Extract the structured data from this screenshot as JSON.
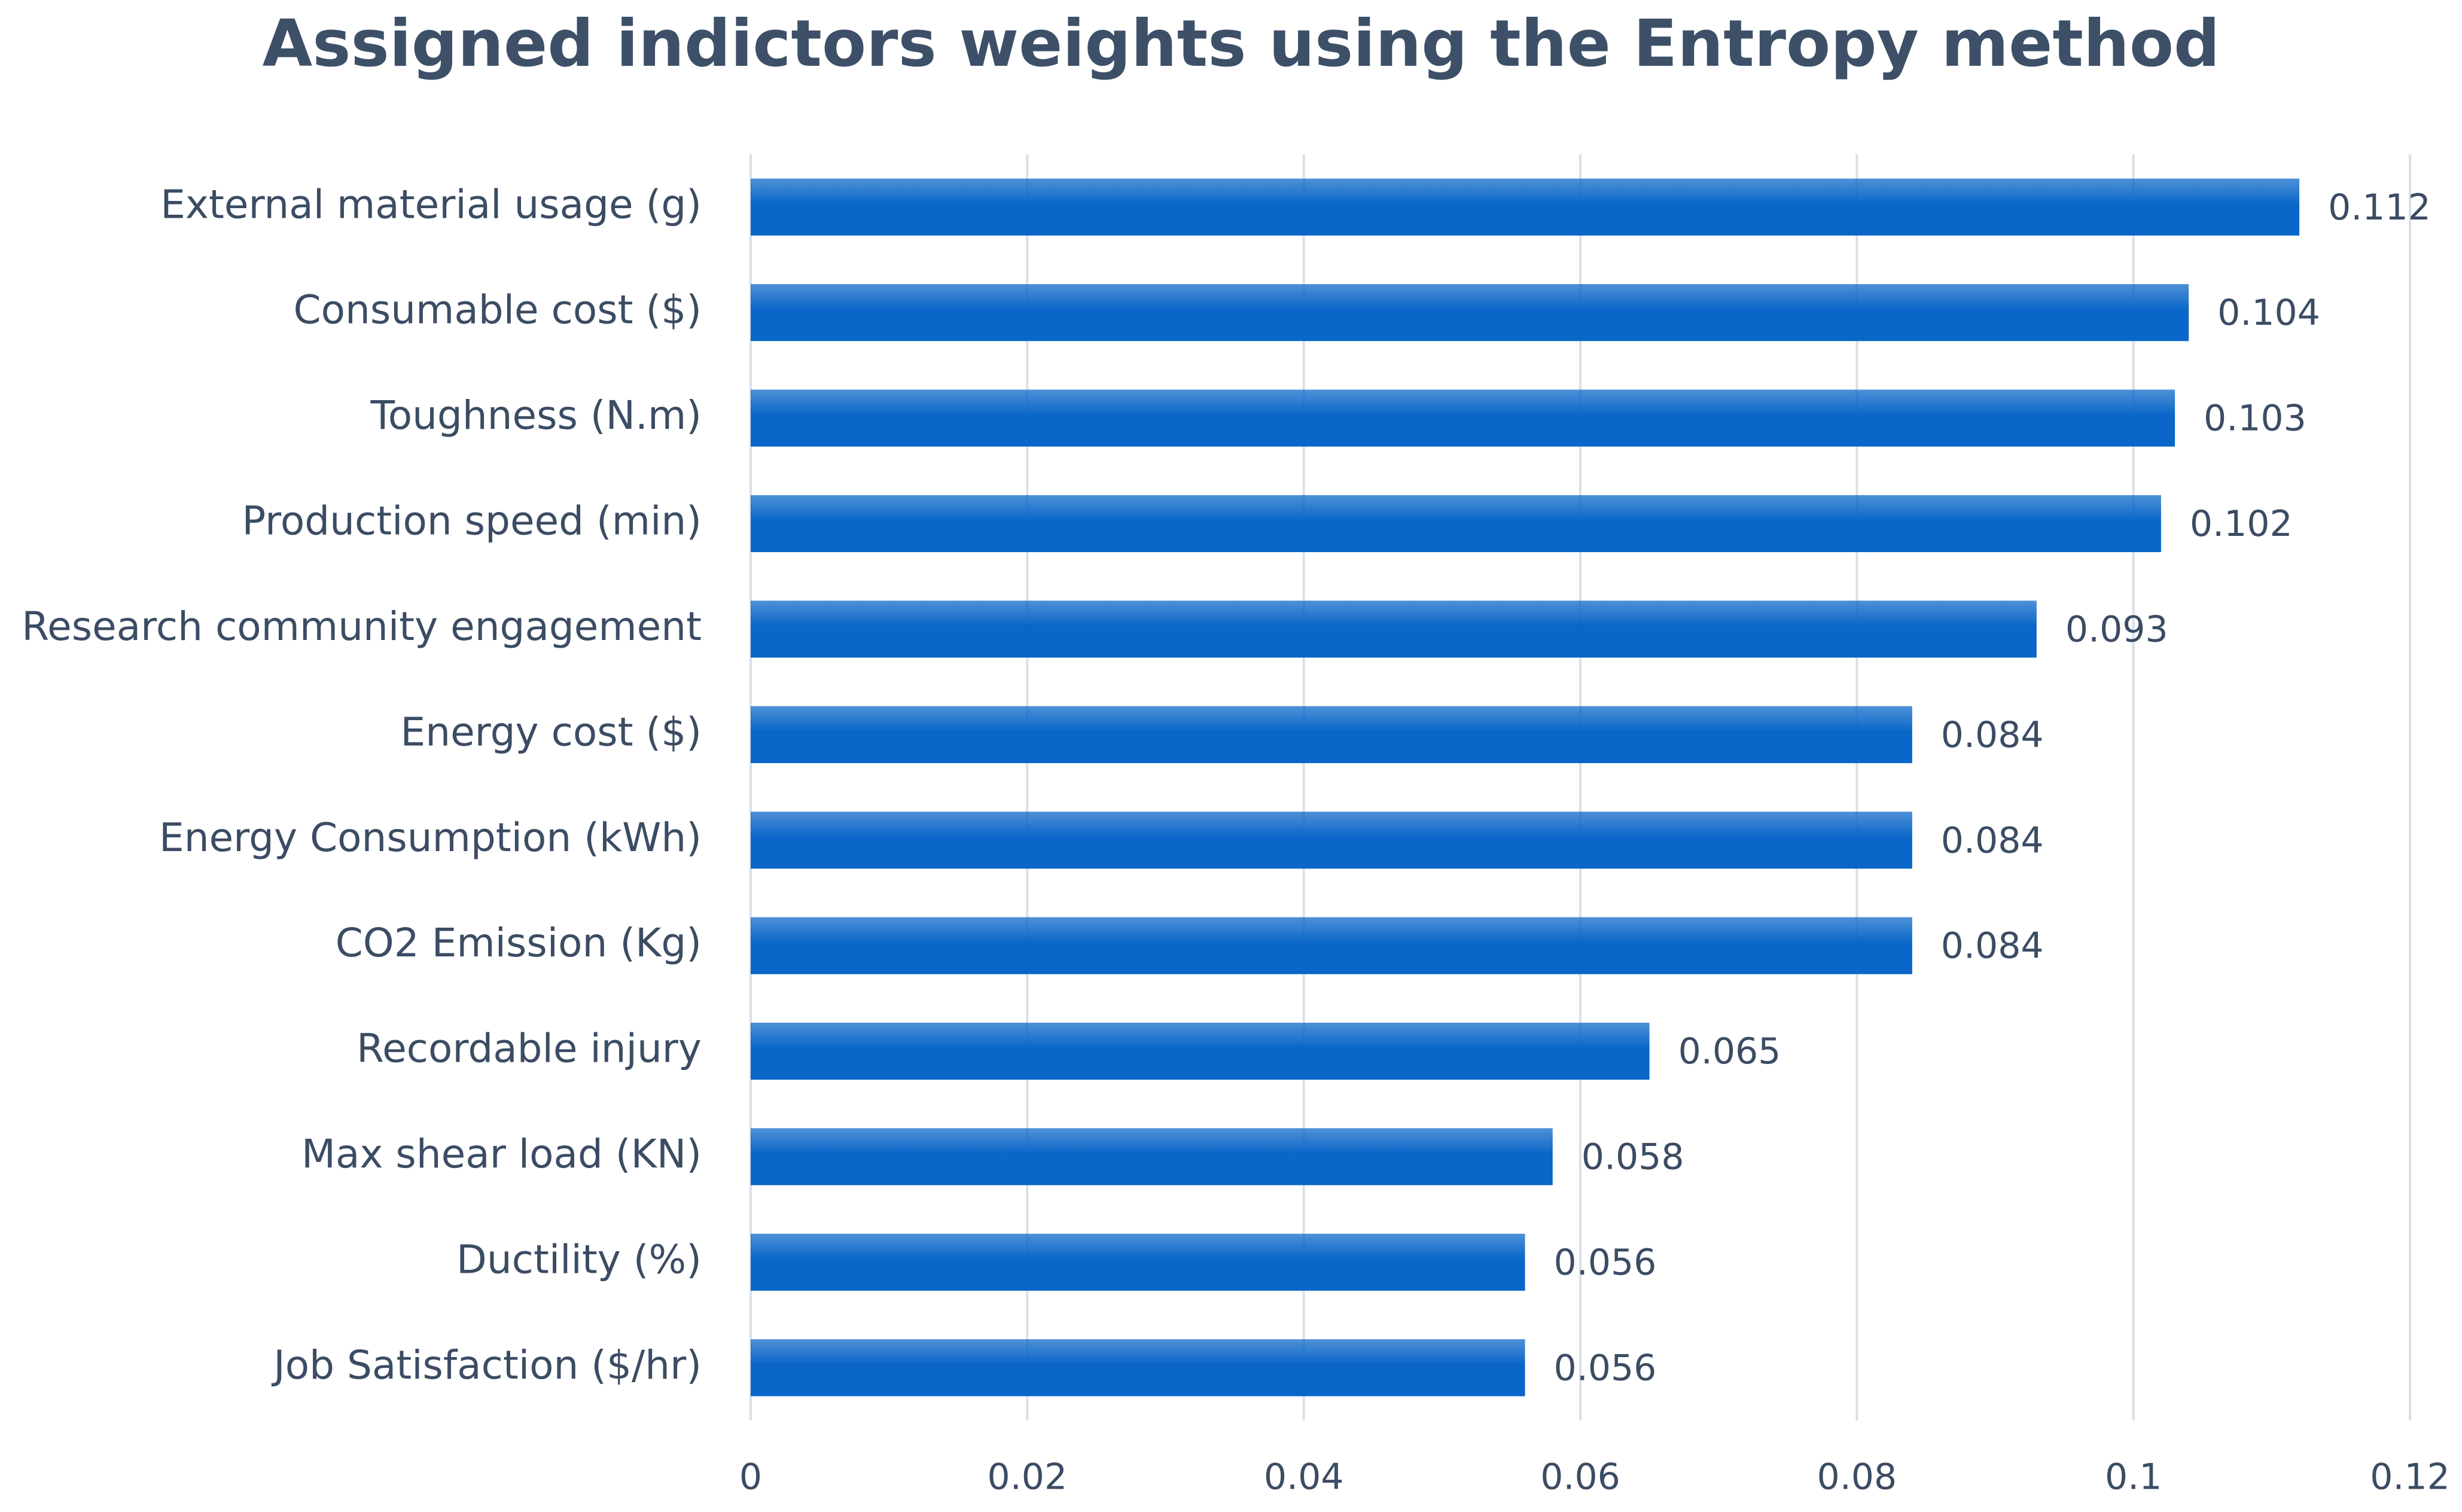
{
  "chart_data": {
    "type": "bar",
    "orientation": "horizontal",
    "title": "Assigned indictors weights using the Entropy method",
    "categories": [
      "External material usage (g)",
      "Consumable cost ($)",
      "Toughness (N.m)",
      "Production speed (min)",
      "Research community engagement",
      "Energy cost ($)",
      "Energy Consumption (kWh)",
      "CO2 Emission (Kg)",
      "Recordable injury",
      "Max shear load (KN)",
      "Ductility (%)",
      "Job Satisfaction ($/hr)"
    ],
    "values": [
      0.112,
      0.104,
      0.103,
      0.102,
      0.093,
      0.084,
      0.084,
      0.084,
      0.065,
      0.058,
      0.056,
      0.056
    ],
    "color": "#0a66c8",
    "xlim": [
      0,
      0.12
    ],
    "xticks": [
      0,
      0.02,
      0.04,
      0.06,
      0.08,
      0.1,
      0.12
    ],
    "grid": true
  }
}
